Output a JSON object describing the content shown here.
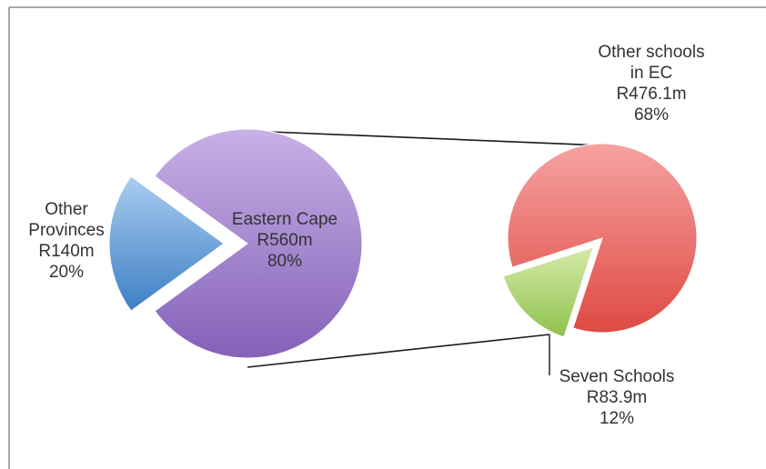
{
  "chart_data": [
    {
      "type": "pie",
      "slices": [
        {
          "label_lines": [
            "Eastern Cape",
            "R560m",
            "80%"
          ],
          "name": "Eastern Cape",
          "amount": "R560m",
          "percent": 80,
          "color": "#9b7bc9"
        },
        {
          "label_lines": [
            "Other",
            "Provinces",
            "R140m",
            "20%"
          ],
          "name": "Other Provinces",
          "amount": "R140m",
          "percent": 20,
          "color": "#5b9bd5"
        }
      ]
    },
    {
      "type": "pie",
      "slices": [
        {
          "label_lines": [
            "Other schools",
            "in EC",
            "R476.1m",
            "68%"
          ],
          "name": "Other schools in EC",
          "amount": "R476.1m",
          "percent": 68,
          "color": "#e8625f"
        },
        {
          "label_lines": [
            "Seven Schools",
            "R83.9m",
            "12%"
          ],
          "name": "Seven Schools",
          "amount": "R83.9m",
          "percent": 12,
          "color": "#a6d06a"
        }
      ]
    }
  ]
}
